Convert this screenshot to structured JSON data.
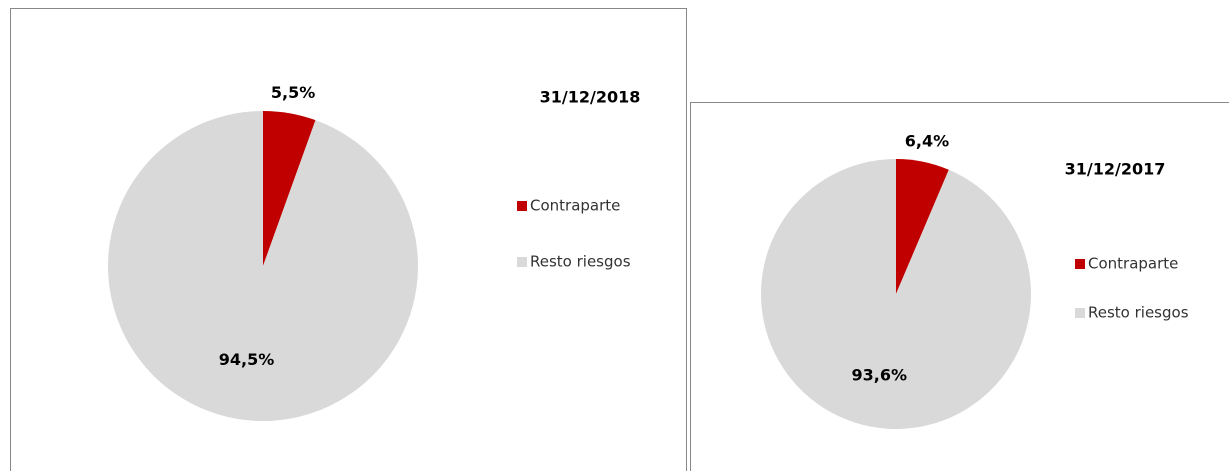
{
  "chart_data": [
    {
      "type": "pie",
      "title": "31/12/2018",
      "categories": [
        "Contraparte",
        "Resto riesgos"
      ],
      "values": [
        5.5,
        94.5
      ],
      "value_labels": [
        "5,5%",
        "94,5%"
      ],
      "colors": [
        "#c00000",
        "#d9d9d9"
      ]
    },
    {
      "type": "pie",
      "title": "31/12/2017",
      "categories": [
        "Contraparte",
        "Resto riesgos"
      ],
      "values": [
        6.4,
        93.6
      ],
      "value_labels": [
        "6,4%",
        "93,6%"
      ],
      "colors": [
        "#c00000",
        "#d9d9d9"
      ]
    }
  ]
}
